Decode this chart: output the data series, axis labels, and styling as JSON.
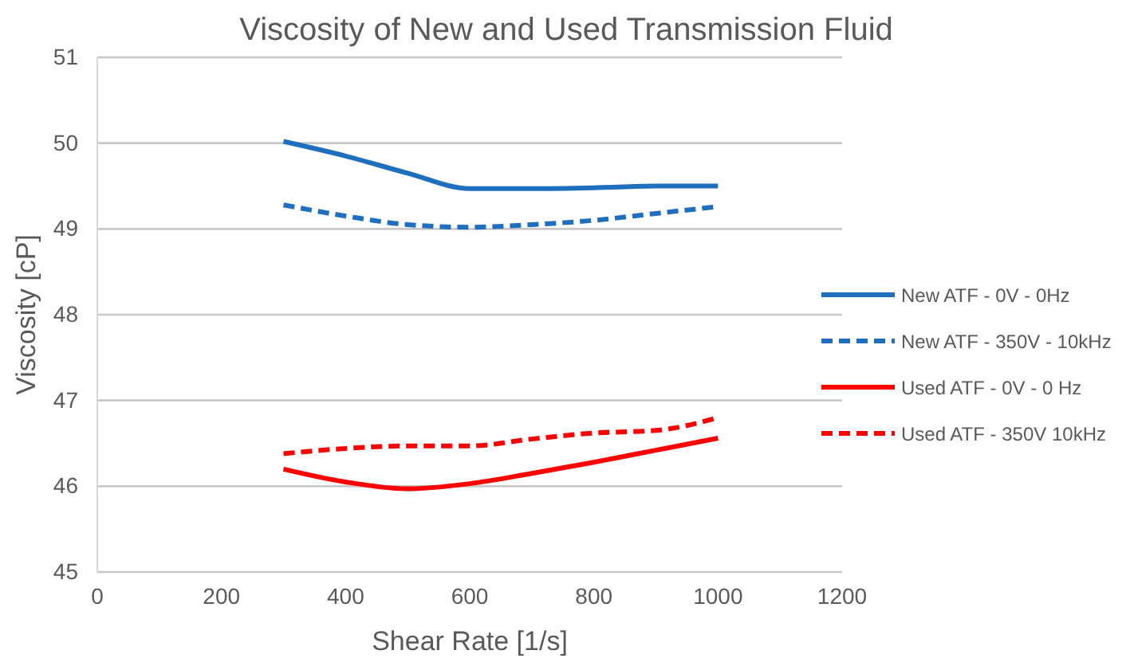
{
  "chart_data": {
    "type": "line",
    "title": "Viscosity of New and Used Transmission Fluid",
    "xlabel": "Shear Rate [1/s]",
    "ylabel": "Viscosity [cP]",
    "x": [
      300,
      400,
      500,
      600,
      700,
      800,
      900,
      1000
    ],
    "series": [
      {
        "name": "New ATF - 0V - 0Hz",
        "color": "#1f6fbf",
        "line_style": "solid",
        "values": [
          50.02,
          49.85,
          49.65,
          49.47,
          49.47,
          49.48,
          49.5,
          49.5
        ]
      },
      {
        "name": "New ATF - 350V - 10kHz",
        "color": "#1f6fbf",
        "line_style": "dashed",
        "values": [
          49.28,
          49.15,
          49.05,
          49.02,
          49.05,
          49.1,
          49.18,
          49.26
        ]
      },
      {
        "name": "Used ATF - 0V - 0 Hz",
        "color": "#ff0000",
        "line_style": "solid",
        "values": [
          46.2,
          46.05,
          45.97,
          46.03,
          46.15,
          46.28,
          46.42,
          46.56
        ]
      },
      {
        "name": "Used ATF - 350V 10kHz",
        "color": "#ff0000",
        "line_style": "dashed",
        "values": [
          46.38,
          46.44,
          46.47,
          46.47,
          46.55,
          46.62,
          46.65,
          46.8
        ]
      }
    ],
    "xlim": [
      0,
      1200
    ],
    "xticks": [
      0,
      200,
      400,
      600,
      800,
      1000,
      1200
    ],
    "ylim": [
      45,
      51
    ],
    "yticks": [
      45,
      46,
      47,
      48,
      49,
      50,
      51
    ],
    "grid": "y",
    "legend": "right",
    "marker": "none"
  }
}
